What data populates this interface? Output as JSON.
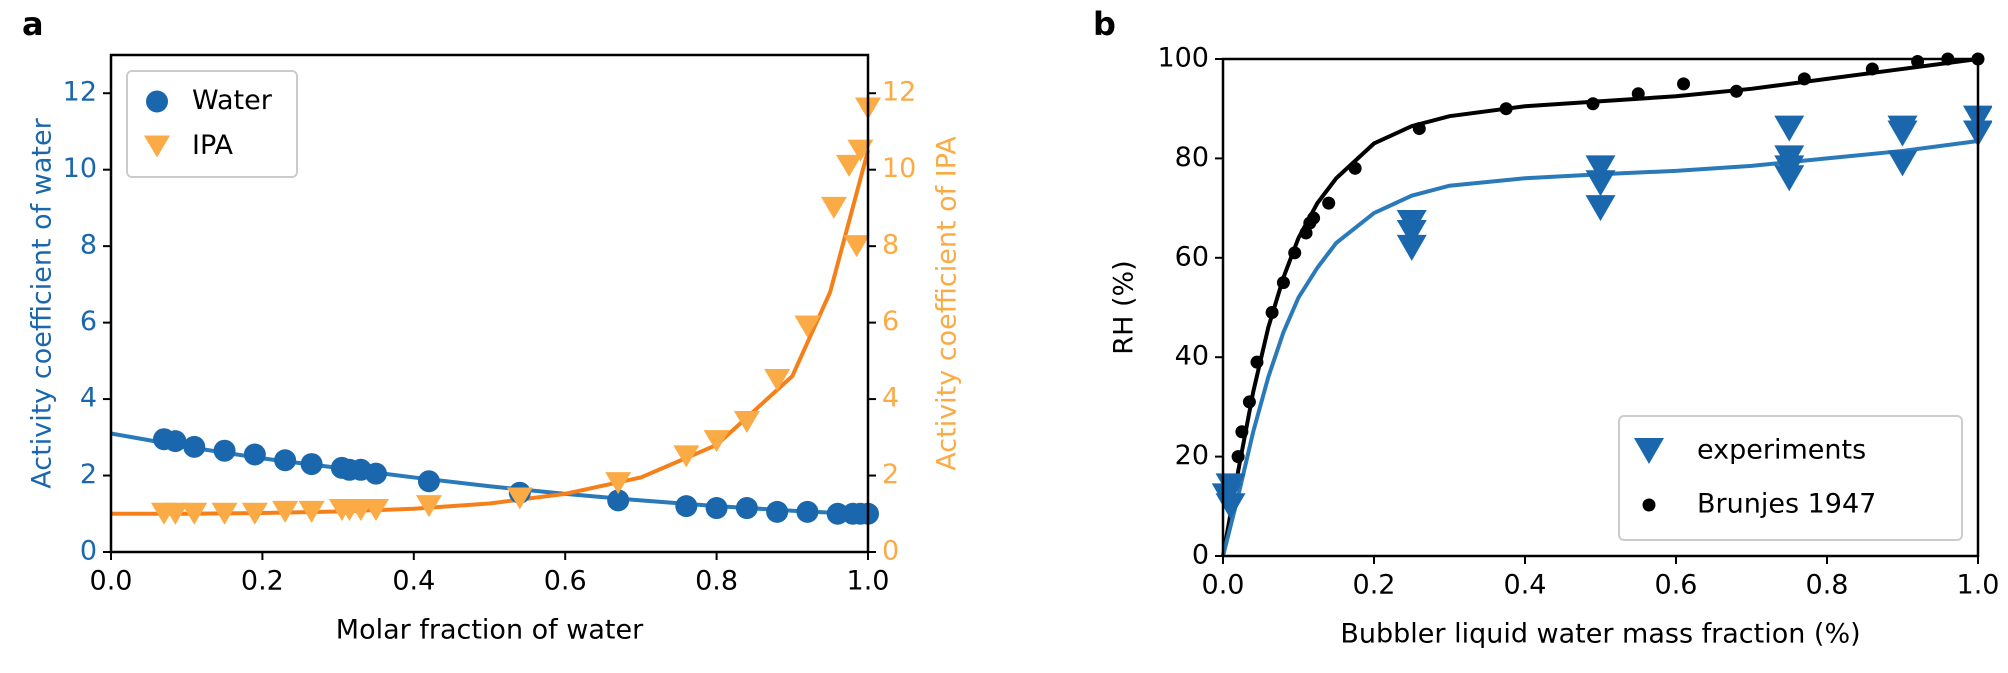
{
  "chart_data": [
    {
      "type": "scatter",
      "panel_label": "a",
      "xlabel": "Molar fraction of water",
      "ylabel": "Activity coefficient of water",
      "y2label": "Activity coefficient of IPA",
      "ylabel_color": "#1a67ad",
      "y2label_color": "#fbab45",
      "xlim": [
        0,
        1
      ],
      "ylim": [
        0,
        13
      ],
      "y2lim": [
        0,
        13
      ],
      "xticks": [
        {
          "value": 0,
          "label": "0.0"
        },
        {
          "value": 0.2,
          "label": "0.2"
        },
        {
          "value": 0.4,
          "label": "0.4"
        },
        {
          "value": 0.6,
          "label": "0.6"
        },
        {
          "value": 0.8,
          "label": "0.8"
        },
        {
          "value": 1,
          "label": "1.0"
        }
      ],
      "yticks": [
        0,
        2,
        4,
        6,
        8,
        10,
        12
      ],
      "y2ticks": [
        0,
        2,
        4,
        6,
        8,
        10,
        12
      ],
      "legend": "upper left",
      "series": [
        {
          "name": "Water",
          "color": "#1a67ad",
          "marker": "o",
          "x": [
            0.07,
            0.085,
            0.11,
            0.15,
            0.19,
            0.23,
            0.265,
            0.305,
            0.315,
            0.33,
            0.35,
            0.42,
            0.54,
            0.67,
            0.76,
            0.8,
            0.84,
            0.88,
            0.92,
            0.96,
            0.98,
            0.99,
            1.0
          ],
          "values": [
            2.95,
            2.9,
            2.75,
            2.65,
            2.55,
            2.4,
            2.3,
            2.2,
            2.15,
            2.15,
            2.05,
            1.85,
            1.55,
            1.35,
            1.2,
            1.15,
            1.15,
            1.05,
            1.05,
            1.0,
            1.0,
            1.0,
            1.0
          ]
        },
        {
          "name": "IPA",
          "color": "#fbab45",
          "marker": "v",
          "axis": "y2",
          "x": [
            0.07,
            0.085,
            0.11,
            0.15,
            0.19,
            0.23,
            0.265,
            0.305,
            0.315,
            0.33,
            0.35,
            0.42,
            0.54,
            0.67,
            0.76,
            0.8,
            0.84,
            0.88,
            0.92,
            0.955,
            0.975,
            0.985,
            0.99,
            1.0
          ],
          "values": [
            1.0,
            1.0,
            1.0,
            1.0,
            1.0,
            1.05,
            1.05,
            1.1,
            1.1,
            1.1,
            1.1,
            1.2,
            1.4,
            1.8,
            2.5,
            2.9,
            3.4,
            4.5,
            5.9,
            9.0,
            10.1,
            8.0,
            10.5,
            11.6
          ]
        }
      ],
      "lines": [
        {
          "color": "#2a7ab9",
          "x": [
            0,
            0.1,
            0.2,
            0.3,
            0.4,
            0.5,
            0.6,
            0.7,
            0.8,
            0.9,
            0.95,
            1.0
          ],
          "values": [
            3.1,
            2.75,
            2.45,
            2.2,
            1.95,
            1.72,
            1.52,
            1.35,
            1.2,
            1.08,
            1.03,
            1.0
          ]
        },
        {
          "color": "#f5801a",
          "axis": "y2",
          "x": [
            0,
            0.1,
            0.2,
            0.3,
            0.4,
            0.5,
            0.6,
            0.7,
            0.8,
            0.9,
            0.95,
            1.0
          ],
          "values": [
            1.0,
            1.0,
            1.02,
            1.06,
            1.13,
            1.27,
            1.52,
            1.95,
            2.8,
            4.6,
            6.8,
            10.5
          ]
        }
      ]
    },
    {
      "type": "scatter",
      "panel_label": "b",
      "xlabel": "Bubbler liquid water mass fraction (%)",
      "ylabel": "RH (%)",
      "ylabel_color": "#000000",
      "xlim": [
        0,
        1
      ],
      "ylim": [
        0,
        100
      ],
      "xticks": [
        {
          "value": 0,
          "label": "0.0"
        },
        {
          "value": 0.2,
          "label": "0.2"
        },
        {
          "value": 0.4,
          "label": "0.4"
        },
        {
          "value": 0.6,
          "label": "0.6"
        },
        {
          "value": 0.8,
          "label": "0.8"
        },
        {
          "value": 1,
          "label": "1.0"
        }
      ],
      "yticks": [
        0,
        20,
        40,
        60,
        80,
        100
      ],
      "legend": "lower right",
      "series": [
        {
          "name": "experiments",
          "color": "#1a67ad",
          "marker": "v",
          "x": [
            0.005,
            0.01,
            0.01,
            0.25,
            0.25,
            0.25,
            0.5,
            0.5,
            0.5,
            0.75,
            0.75,
            0.75,
            0.75,
            0.9,
            0.9,
            0.9,
            1.0,
            1.0
          ],
          "values": [
            12,
            14,
            10,
            67,
            65,
            62,
            78,
            75,
            70,
            86,
            80,
            78,
            76,
            86,
            85,
            79,
            88,
            85
          ]
        },
        {
          "name": "Brunjes 1947",
          "color": "#000000",
          "marker": ".",
          "x": [
            0.02,
            0.025,
            0.035,
            0.045,
            0.065,
            0.08,
            0.095,
            0.11,
            0.115,
            0.12,
            0.14,
            0.175,
            0.26,
            0.375,
            0.49,
            0.55,
            0.61,
            0.68,
            0.77,
            0.86,
            0.92,
            0.96,
            1.0
          ],
          "values": [
            20,
            25,
            31,
            39,
            49,
            55,
            61,
            65,
            67,
            68,
            71,
            78,
            86,
            90,
            91,
            93,
            95,
            93.5,
            96,
            98,
            99.5,
            100,
            100
          ]
        }
      ],
      "lines": [
        {
          "color": "#000000",
          "x": [
            0,
            0.02,
            0.04,
            0.06,
            0.08,
            0.1,
            0.125,
            0.15,
            0.2,
            0.25,
            0.3,
            0.4,
            0.5,
            0.6,
            0.7,
            0.8,
            0.9,
            1.0
          ],
          "values": [
            0,
            17,
            33,
            46,
            56,
            64,
            71,
            76,
            83,
            86.5,
            88.5,
            90.5,
            91.5,
            92.5,
            94,
            96,
            98,
            100
          ]
        },
        {
          "color": "#2a7ab9",
          "x": [
            0,
            0.02,
            0.04,
            0.06,
            0.08,
            0.1,
            0.125,
            0.15,
            0.2,
            0.25,
            0.3,
            0.4,
            0.5,
            0.6,
            0.7,
            0.8,
            0.9,
            1.0
          ],
          "values": [
            0,
            12,
            25,
            36,
            45,
            52,
            58,
            63,
            69,
            72.5,
            74.5,
            76,
            76.8,
            77.5,
            78.5,
            80,
            81.5,
            83.5
          ]
        }
      ]
    }
  ]
}
